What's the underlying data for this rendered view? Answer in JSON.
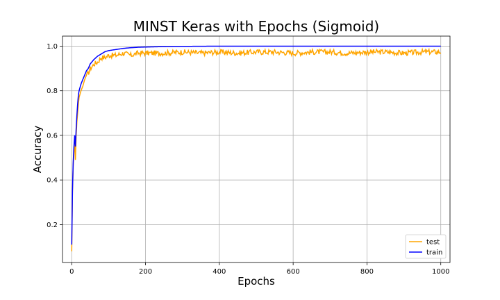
{
  "chart_data": {
    "type": "line",
    "title": "MINST Keras with Epochs (Sigmoid)",
    "xlabel": "Epochs",
    "ylabel": "Accuracy",
    "xlim": [
      -25,
      1025
    ],
    "ylim": [
      0.03,
      1.045
    ],
    "xticks": [
      0,
      200,
      400,
      600,
      800,
      1000
    ],
    "yticks": [
      0.2,
      0.4,
      0.6,
      0.8,
      1.0
    ],
    "xtick_labels": [
      "0",
      "200",
      "400",
      "600",
      "800",
      "1000"
    ],
    "ytick_labels": [
      "0.2",
      "0.4",
      "0.6",
      "0.8",
      "1.0"
    ],
    "grid": true,
    "legend_position": "bottom-right",
    "series": [
      {
        "name": "test",
        "color": "#FFA500",
        "x": [
          0,
          2,
          4,
          6,
          8,
          10,
          12,
          14,
          16,
          18,
          20,
          25,
          30,
          35,
          40,
          45,
          50,
          60,
          70,
          80,
          90,
          100,
          120,
          140,
          160,
          180,
          200,
          250,
          300,
          350,
          400,
          450,
          500,
          550,
          600,
          650,
          700,
          750,
          800,
          850,
          900,
          950,
          1000
        ],
        "values": [
          0.08,
          0.35,
          0.46,
          0.52,
          0.58,
          0.49,
          0.6,
          0.66,
          0.7,
          0.74,
          0.77,
          0.8,
          0.82,
          0.85,
          0.87,
          0.88,
          0.9,
          0.92,
          0.93,
          0.95,
          0.95,
          0.96,
          0.96,
          0.97,
          0.96,
          0.97,
          0.97,
          0.97,
          0.975,
          0.97,
          0.975,
          0.97,
          0.975,
          0.975,
          0.97,
          0.975,
          0.975,
          0.97,
          0.975,
          0.975,
          0.97,
          0.975,
          0.975
        ],
        "noise": 0.012
      },
      {
        "name": "train",
        "color": "#0000FF",
        "x": [
          0,
          2,
          4,
          6,
          8,
          10,
          12,
          14,
          16,
          18,
          20,
          25,
          30,
          35,
          40,
          45,
          50,
          60,
          70,
          80,
          90,
          100,
          120,
          140,
          160,
          180,
          200,
          250,
          300,
          350,
          400,
          450,
          500,
          550,
          600,
          650,
          700,
          750,
          800,
          850,
          900,
          950,
          1000
        ],
        "values": [
          0.11,
          0.35,
          0.48,
          0.55,
          0.6,
          0.55,
          0.63,
          0.69,
          0.74,
          0.78,
          0.8,
          0.83,
          0.85,
          0.87,
          0.89,
          0.9,
          0.92,
          0.94,
          0.955,
          0.965,
          0.975,
          0.98,
          0.985,
          0.99,
          0.993,
          0.995,
          0.996,
          0.998,
          0.999,
          0.9995,
          1.0,
          1.0,
          1.0,
          1.0,
          1.0,
          1.0,
          1.0,
          1.0,
          1.0,
          1.0,
          1.0,
          1.0,
          1.0
        ],
        "noise": 0.0
      }
    ]
  }
}
